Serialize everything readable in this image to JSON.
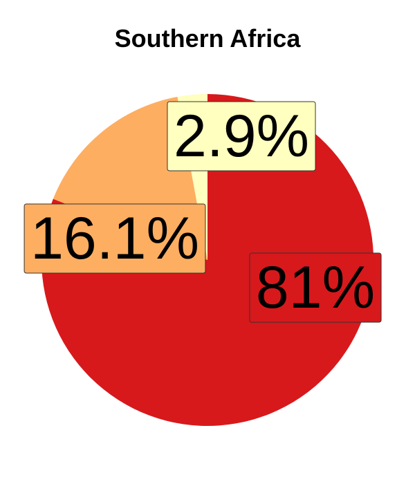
{
  "chart_data": {
    "type": "pie",
    "title": "Southern Africa",
    "slices": [
      {
        "value": 81.0,
        "label": "81%",
        "color": "#d7191c"
      },
      {
        "value": 16.1,
        "label": "16.1%",
        "color": "#fdae61"
      },
      {
        "value": 2.9,
        "label": "2.9%",
        "color": "#ffffbf"
      }
    ],
    "start": "12 o'clock",
    "direction": "clockwise",
    "legend": "none"
  }
}
